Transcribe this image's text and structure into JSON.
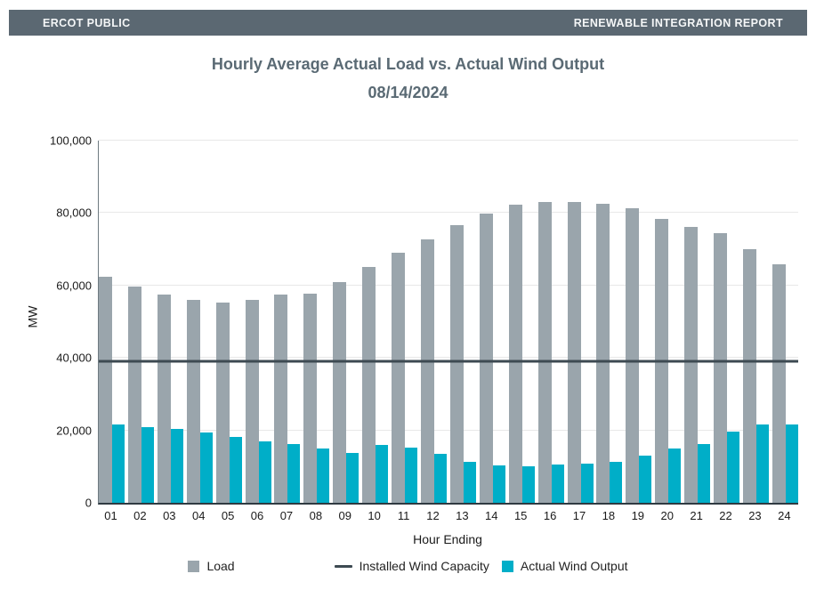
{
  "header": {
    "left": "ERCOT PUBLIC",
    "right": "RENEWABLE INTEGRATION REPORT",
    "background": "#5b6872"
  },
  "title": "Hourly Average Actual Load vs. Actual Wind Output",
  "subtitle": "08/14/2024",
  "chart_data": {
    "type": "bar",
    "title": "Hourly Average Actual Load vs. Actual Wind Output",
    "subtitle": "08/14/2024",
    "xlabel": "Hour Ending",
    "ylabel": "MW",
    "ylim": [
      0,
      100000
    ],
    "ytick_step": 20000,
    "ytick_labels": [
      "0",
      "20,000",
      "40,000",
      "60,000",
      "80,000",
      "100,000"
    ],
    "grid": true,
    "legend_position": "bottom",
    "categories": [
      "01",
      "02",
      "03",
      "04",
      "05",
      "06",
      "07",
      "08",
      "09",
      "10",
      "11",
      "12",
      "13",
      "14",
      "15",
      "16",
      "17",
      "18",
      "19",
      "20",
      "21",
      "22",
      "23",
      "24"
    ],
    "series": [
      {
        "name": "Load",
        "kind": "bar",
        "color": "#9aa5ac",
        "values": [
          62500,
          59700,
          57600,
          56100,
          55400,
          56100,
          57600,
          57700,
          60900,
          65100,
          69000,
          72700,
          76700,
          79900,
          82300,
          83100,
          83000,
          82500,
          81400,
          78400,
          76100,
          74400,
          70000,
          65800
        ]
      },
      {
        "name": "Installed Wind Capacity",
        "kind": "hline",
        "color": "#3d4a52",
        "value": 39000
      },
      {
        "name": "Actual Wind Output",
        "kind": "bar",
        "color": "#00aec8",
        "values": [
          21600,
          20900,
          20300,
          19400,
          18200,
          17000,
          16100,
          14900,
          13700,
          15900,
          15300,
          13500,
          11400,
          10400,
          10100,
          10600,
          10800,
          11400,
          13000,
          14900,
          16200,
          19700,
          21700,
          21600
        ]
      }
    ],
    "colors": {
      "gridline": "#e8e8e8",
      "axis_text": "#1a1a1a",
      "title_text": "#5a6a74"
    }
  }
}
